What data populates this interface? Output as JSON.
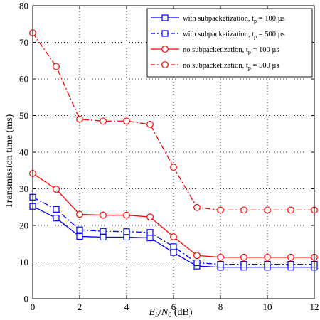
{
  "chart_data": {
    "type": "line",
    "xlabel_parts": {
      "e": "E",
      "e_sub": "b",
      "slash": "/",
      "n": "N",
      "n_sub": "0",
      "unit": " (dB)"
    },
    "ylabel": "Transmission time (ms)",
    "xlim": [
      0,
      12
    ],
    "ylim": [
      0,
      80
    ],
    "xticks": [
      0,
      2,
      4,
      6,
      8,
      10,
      12
    ],
    "yticks": [
      0,
      10,
      20,
      30,
      40,
      50,
      60,
      70,
      80
    ],
    "grid": true,
    "legend_position": "top-right",
    "x": [
      0,
      1,
      2,
      3,
      4,
      5,
      6,
      7,
      8,
      9,
      10,
      11,
      12
    ],
    "series": [
      {
        "name": "with subpacketization, t",
        "name_sub": "p",
        "name_tail": " = 100 µs",
        "color": "#0000ff",
        "marker": "square",
        "dash": "solid",
        "values": [
          25.2,
          22.0,
          17.0,
          16.8,
          16.8,
          16.6,
          12.6,
          8.9,
          8.6,
          8.6,
          8.6,
          8.6,
          8.6
        ]
      },
      {
        "name": "with subpacketization, t",
        "name_sub": "p",
        "name_tail": " = 500 µs",
        "color": "#0000ff",
        "marker": "square",
        "dash": "dashdot",
        "values": [
          27.7,
          24.4,
          18.8,
          18.4,
          18.3,
          18.1,
          14.2,
          9.8,
          9.4,
          9.4,
          9.4,
          9.4,
          9.4
        ]
      },
      {
        "name": "no subpacketization, t",
        "name_sub": "p",
        "name_tail": " = 100 µs",
        "color": "#ff0000",
        "marker": "circle",
        "dash": "solid",
        "values": [
          34.2,
          29.9,
          23.0,
          22.8,
          22.8,
          22.3,
          16.9,
          11.8,
          11.3,
          11.3,
          11.3,
          11.3,
          11.3
        ]
      },
      {
        "name": "no subpacketization, t",
        "name_sub": "p",
        "name_tail": " = 500 µs",
        "color": "#ff0000",
        "marker": "circle",
        "dash": "dashdot",
        "values": [
          72.6,
          63.4,
          49.0,
          48.5,
          48.5,
          47.6,
          35.9,
          24.9,
          24.2,
          24.2,
          24.2,
          24.2,
          24.2
        ]
      }
    ]
  }
}
